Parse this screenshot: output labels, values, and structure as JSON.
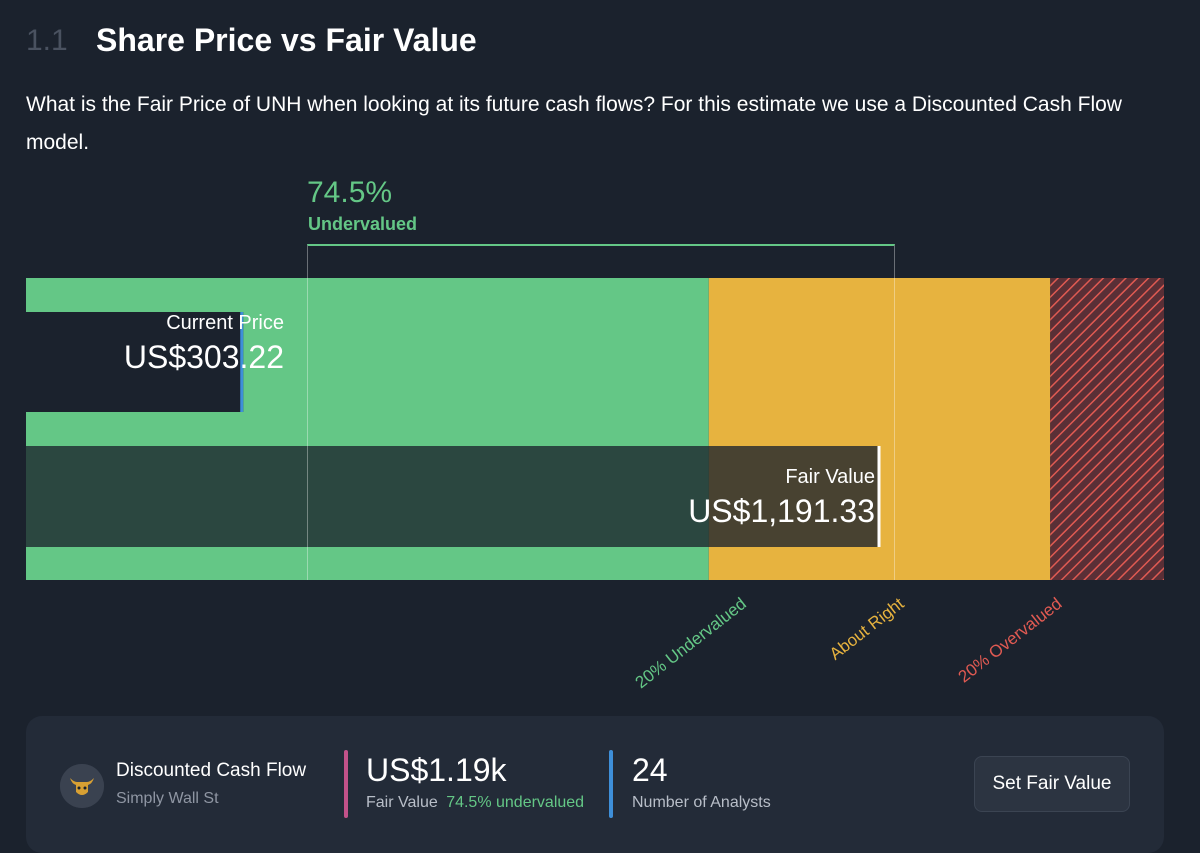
{
  "header": {
    "section_number": "1.1",
    "title": "Share Price vs Fair Value",
    "description": "What is the Fair Price of UNH when looking at its future cash flows? For this estimate we use a Discounted Cash Flow model."
  },
  "colors": {
    "background": "#1b222d",
    "undervalued": "#64c786",
    "about_right": "#e7b33f",
    "overvalued": "#e05a52",
    "current_price_marker": "#3e8fd9"
  },
  "chart_data": {
    "type": "bar",
    "current_price": {
      "label": "Current Price",
      "value": 303.22,
      "display": "US$303.22"
    },
    "fair_value": {
      "label": "Fair Value",
      "value": 1191.33,
      "display": "US$1,191.33"
    },
    "discount": {
      "value_display": "74.5%",
      "label": "Undervalued",
      "percent": 74.5
    },
    "zones": [
      {
        "name": "20% Undervalued",
        "from": 0,
        "to": 953.06,
        "color": "#64c786"
      },
      {
        "name": "About Right",
        "from": 953.06,
        "to": 1429.6,
        "color": "#e7b33f"
      },
      {
        "name": "20% Overvalued",
        "from": 1429.6,
        "to": 1588.44,
        "color": "#e05a52",
        "pattern": "hatched"
      }
    ],
    "axis_range": [
      0,
      1588.44
    ]
  },
  "footer": {
    "model_name": "Discounted Cash Flow",
    "model_source": "Simply Wall St",
    "fair_value_short": "US$1.19k",
    "fair_value_label": "Fair Value",
    "fair_value_status": "74.5% undervalued",
    "analysts_count": "24",
    "analysts_label": "Number of Analysts",
    "set_button_label": "Set Fair Value",
    "avatar_icon": "bull-icon"
  }
}
